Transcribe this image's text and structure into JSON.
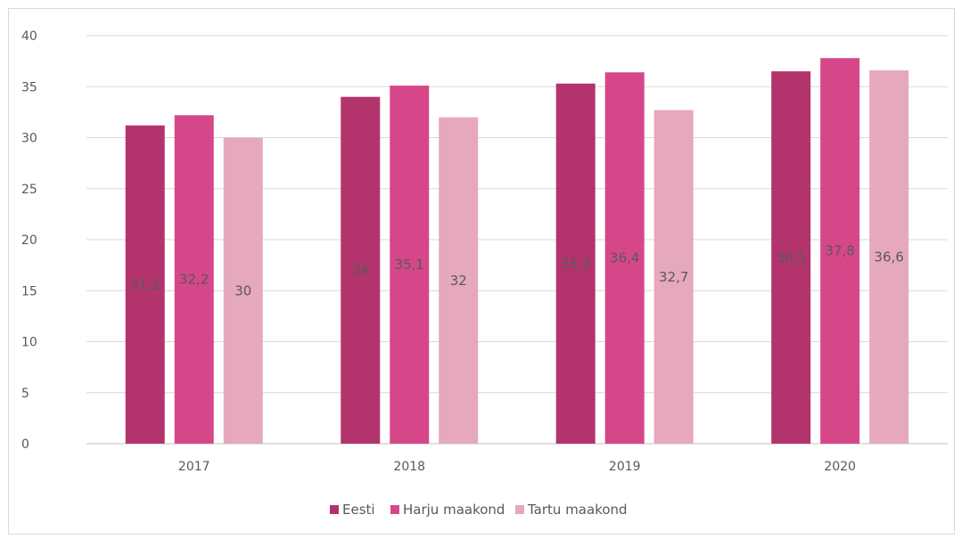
{
  "chart_data": {
    "type": "bar",
    "title": "",
    "xlabel": "",
    "ylabel": "",
    "categories": [
      "2017",
      "2018",
      "2019",
      "2020"
    ],
    "series": [
      {
        "name": "Eesti",
        "values": [
          31.2,
          34.0,
          35.3,
          36.5
        ],
        "labels": [
          "31,2",
          "34",
          "35,3",
          "36,5"
        ],
        "color": "#b3346c"
      },
      {
        "name": "Harju maakond",
        "values": [
          32.2,
          35.1,
          36.4,
          37.8
        ],
        "labels": [
          "32,2",
          "35,1",
          "36,4",
          "37,8"
        ],
        "color": "#d6478a"
      },
      {
        "name": "Tartu maakond",
        "values": [
          30.0,
          32.0,
          32.7,
          36.6
        ],
        "labels": [
          "30",
          "32",
          "32,7",
          "36,6"
        ],
        "color": "#e6a8bd"
      }
    ],
    "ylim": [
      0,
      40
    ],
    "yticks": [
      "0",
      "5",
      "10",
      "15",
      "20",
      "25",
      "30",
      "35",
      "40"
    ],
    "grid": true,
    "legend_position": "bottom"
  }
}
